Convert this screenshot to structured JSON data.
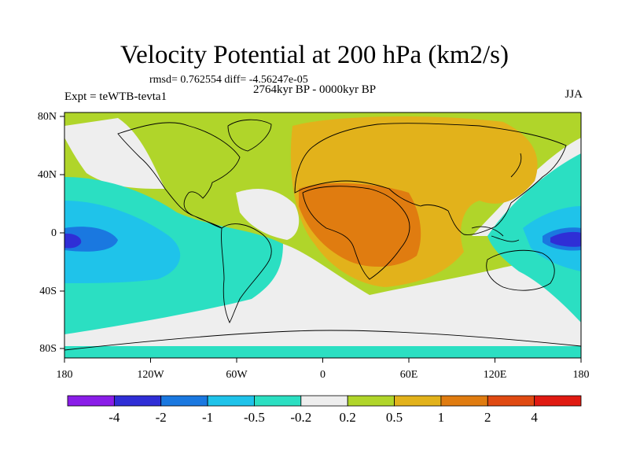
{
  "title": "Velocity Potential at 200 hPa (km2/s)",
  "stats_line": "rmsd= 0.762554 diff= -4.56247e-05",
  "experiment_line": "Expt = teWTB-tevta1",
  "period_line": "2764kyr BP - 0000kyr BP",
  "season": "JJA",
  "lat_axis_labels": [
    "80N",
    "40N",
    "0",
    "40S",
    "80S"
  ],
  "lon_axis_labels": [
    "180",
    "120W",
    "60W",
    "0",
    "60E",
    "120E",
    "180"
  ],
  "colorbar": {
    "labels": [
      "-4",
      "-2",
      "-1",
      "-0.5",
      "-0.2",
      "0.2",
      "0.5",
      "1",
      "2",
      "4"
    ],
    "colors": [
      "#8a1de8",
      "#2f2ed6",
      "#1a78e0",
      "#1fc3ea",
      "#2bdfc2",
      "#eeeeee",
      "#b0d52a",
      "#e2b21b",
      "#e07c10",
      "#e04a12",
      "#e01a12"
    ]
  },
  "palette": {
    "ocean_background": "#b0d52a",
    "coast": "#000000"
  }
}
